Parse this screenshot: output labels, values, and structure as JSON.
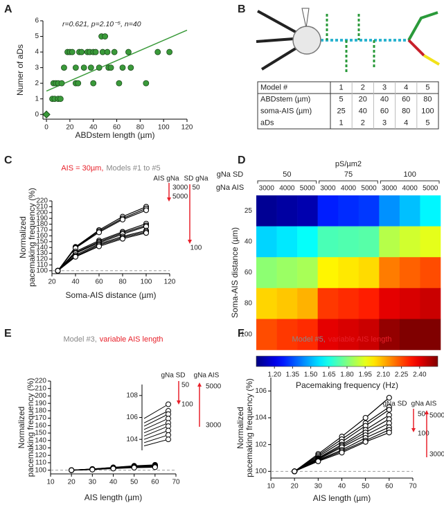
{
  "panel_labels": [
    "A",
    "B",
    "C",
    "D",
    "E",
    "F"
  ],
  "diagram_b": {
    "table": {
      "header": [
        "Model #",
        "1",
        "2",
        "3",
        "4",
        "5"
      ],
      "rows": [
        {
          "label": "ABDstem (µm)",
          "color": "#1aa7d4",
          "cells": [
            "5",
            "20",
            "40",
            "60",
            "80"
          ]
        },
        {
          "label": "soma-AIS (µm)",
          "color": "#e8202a",
          "cells": [
            "25",
            "40",
            "60",
            "80",
            "100"
          ]
        },
        {
          "label": "aDs",
          "color": "#2a9a3a",
          "cells": [
            "1",
            "2",
            "3",
            "4",
            "5"
          ]
        }
      ]
    }
  },
  "chart_data": [
    {
      "type": "scatter",
      "annotation": "r=0.621, p=2.10⁻⁵, n=40",
      "x_label": "ABDstem length (µm)",
      "y_label": "Numer of aDs",
      "xlim": [
        -3,
        120
      ],
      "ylim": [
        -0.3,
        6
      ],
      "xticks": [
        0,
        20,
        40,
        60,
        80,
        100,
        120
      ],
      "yticks": [
        0,
        1,
        2,
        3,
        4,
        5,
        6
      ],
      "color": "#3a9a3a",
      "x": [
        5,
        6,
        7,
        8,
        10,
        10,
        12,
        13,
        15,
        18,
        20,
        22,
        25,
        25,
        27,
        28,
        30,
        32,
        35,
        37,
        38,
        40,
        40,
        42,
        45,
        47,
        48,
        50,
        52,
        53,
        55,
        58,
        62,
        65,
        70,
        72,
        85,
        95,
        105
      ],
      "values": [
        1,
        2,
        1,
        2,
        2,
        1,
        1,
        2,
        3,
        4,
        4,
        4,
        2,
        3,
        2,
        4,
        4,
        3,
        4,
        4,
        3,
        2,
        4,
        4,
        3,
        5,
        4,
        5,
        4,
        3,
        3,
        4,
        2,
        3,
        4,
        3,
        2,
        4,
        4
      ],
      "extra_point": {
        "x": 0,
        "y": 0
      },
      "fit": {
        "x": [
          0,
          120
        ],
        "values": [
          1.5,
          5.4
        ]
      }
    },
    {
      "type": "line",
      "title_parts": [
        {
          "text": "AIS = 30µm,",
          "color": "#e8202a"
        },
        {
          "text": "Models #1 to #5",
          "color": "#888888"
        }
      ],
      "x_label": "Soma-AIS distance (µm)",
      "y_label": [
        "Normalized",
        "pacemaking frequency (%)"
      ],
      "xlim": [
        20,
        120
      ],
      "ylim": [
        95,
        220
      ],
      "xticks": [
        20,
        40,
        60,
        80,
        100,
        120
      ],
      "yticks": [
        100,
        110,
        120,
        130,
        140,
        150,
        160,
        170,
        180,
        190,
        200,
        210,
        220
      ],
      "hline": 100,
      "x": [
        25,
        40,
        60,
        80,
        100
      ],
      "series": [
        {
          "color": "#000000",
          "values": [
            100,
            141,
            170,
            193,
            210
          ]
        },
        {
          "color": "#000000",
          "values": [
            100,
            140,
            168,
            190,
            207
          ]
        },
        {
          "color": "#000000",
          "values": [
            100,
            139,
            166,
            188,
            204
          ]
        },
        {
          "color": "#000000",
          "values": [
            100,
            133,
            152,
            167,
            181
          ]
        },
        {
          "color": "#000000",
          "values": [
            100,
            131,
            150,
            165,
            178
          ]
        },
        {
          "color": "#000000",
          "values": [
            100,
            130,
            148,
            163,
            176
          ]
        },
        {
          "color": "#000000",
          "values": [
            100,
            127,
            146,
            159,
            169
          ]
        },
        {
          "color": "#000000",
          "values": [
            100,
            125,
            144,
            157,
            167
          ]
        },
        {
          "color": "#000000",
          "values": [
            100,
            124,
            142,
            155,
            165
          ]
        }
      ],
      "annotations": [
        "AIS gNa",
        "SD gNa",
        "3000",
        "5000",
        "50",
        "100"
      ]
    },
    {
      "type": "heatmap",
      "top_label": "pS/µm2",
      "group_label": "gNa SD",
      "groups": [
        50,
        75,
        100
      ],
      "column_label": "gNa AIS",
      "columns": [
        3000,
        4000,
        5000,
        3000,
        4000,
        5000,
        3000,
        4000,
        5000
      ],
      "categories": [
        25,
        40,
        60,
        80,
        100
      ],
      "y_label": "Soma-AIS distance (µm)",
      "z": [
        [
          1.08,
          1.1,
          1.12,
          1.28,
          1.3,
          1.32,
          1.45,
          1.52,
          1.6
        ],
        [
          1.55,
          1.58,
          1.62,
          1.72,
          1.73,
          1.74,
          1.88,
          1.92,
          1.95
        ],
        [
          1.82,
          1.84,
          1.86,
          2.0,
          2.02,
          2.04,
          2.18,
          2.22,
          2.25
        ],
        [
          2.05,
          2.07,
          2.1,
          2.28,
          2.3,
          2.32,
          2.4,
          2.42,
          2.44
        ],
        [
          2.25,
          2.28,
          2.3,
          2.4,
          2.42,
          2.44,
          2.52,
          2.55,
          2.58
        ]
      ],
      "colormap": "jet",
      "colorbar": {
        "lim": [
          1.05,
          2.55
        ],
        "label": "Pacemaking frequency (Hz)",
        "ticks": [
          {
            "value": 1.2,
            "label": "1.20"
          },
          {
            "value": 1.35,
            "label": "1.35"
          },
          {
            "value": 1.5,
            "label": "1.50"
          },
          {
            "value": 1.65,
            "label": "1.65"
          },
          {
            "value": 1.8,
            "label": "1.80"
          },
          {
            "value": 1.95,
            "label": "1.95"
          },
          {
            "value": 2.1,
            "label": "2.10"
          },
          {
            "value": 2.25,
            "label": "2.25"
          },
          {
            "value": 2.4,
            "label": "2.40"
          }
        ]
      }
    },
    {
      "type": "line",
      "title_parts": [
        {
          "text": "Model #3,",
          "color": "#888888"
        },
        {
          "text": "variable AIS length",
          "color": "#e8202a"
        }
      ],
      "x_label": "AIS length (µm)",
      "y_label": [
        "Normalized",
        "pacemaking frequency (%)"
      ],
      "xlim": [
        10,
        70
      ],
      "ylim": [
        95,
        220
      ],
      "xticks": [
        10,
        20,
        30,
        40,
        50,
        60,
        70
      ],
      "yticks": [
        100,
        110,
        120,
        130,
        140,
        150,
        160,
        170,
        180,
        190,
        200,
        210,
        220
      ],
      "hline": 100,
      "x": [
        20,
        30,
        40,
        50,
        60
      ],
      "series": [
        {
          "color": "#000000",
          "values": [
            100,
            101.6,
            103.8,
            105.9,
            107.2
          ]
        },
        {
          "color": "#000000",
          "values": [
            100,
            101.5,
            103.6,
            105.5,
            106.6
          ]
        },
        {
          "color": "#000000",
          "values": [
            100,
            101.4,
            103.4,
            105.2,
            106.3
          ]
        },
        {
          "color": "#000000",
          "values": [
            100,
            101.3,
            103.2,
            104.9,
            105.9
          ]
        },
        {
          "color": "#000000",
          "values": [
            100,
            101.2,
            103.0,
            104.6,
            105.5
          ]
        },
        {
          "color": "#000000",
          "values": [
            100,
            101.1,
            102.8,
            104.3,
            105.2
          ]
        },
        {
          "color": "#000000",
          "values": [
            100,
            101.0,
            102.6,
            104.0,
            104.8
          ]
        },
        {
          "color": "#000000",
          "values": [
            100,
            100.9,
            102.4,
            103.7,
            104.4
          ]
        },
        {
          "color": "#000000",
          "values": [
            100,
            100.8,
            102.2,
            103.4,
            104.0
          ]
        }
      ],
      "inset": {
        "xlim": [
          50,
          60
        ],
        "ylim": [
          103,
          109
        ],
        "yticks": [
          104,
          106,
          108
        ]
      },
      "annotations": [
        "gNa SD",
        "gNa AIS",
        "50",
        "100",
        "5000",
        "3000"
      ]
    },
    {
      "type": "line",
      "title_parts": [
        {
          "text": "Model #5,",
          "color": "#888888"
        },
        {
          "text": "variable AIS length",
          "color": "#e8202a"
        }
      ],
      "x_label": "AIS length (µm)",
      "y_label": [
        "Normalized",
        "pacemaking frequency (%)"
      ],
      "xlim": [
        10,
        70
      ],
      "ylim": [
        99.5,
        107
      ],
      "xticks": [
        10,
        20,
        30,
        40,
        50,
        60,
        70
      ],
      "yticks": [
        100,
        102,
        104,
        106
      ],
      "hline": 100,
      "x": [
        20,
        30,
        40,
        50,
        60
      ],
      "series": [
        {
          "color": "#000000",
          "values": [
            100,
            101.3,
            102.6,
            104.0,
            105.5
          ]
        },
        {
          "color": "#000000",
          "values": [
            100,
            101.2,
            102.4,
            103.6,
            104.8
          ]
        },
        {
          "color": "#000000",
          "values": [
            100,
            101.1,
            102.2,
            103.4,
            104.6
          ]
        },
        {
          "color": "#000000",
          "values": [
            100,
            101.0,
            102.0,
            103.1,
            104.2
          ]
        },
        {
          "color": "#000000",
          "values": [
            100,
            100.95,
            101.9,
            102.9,
            103.9
          ]
        },
        {
          "color": "#000000",
          "values": [
            100,
            100.9,
            101.8,
            102.7,
            103.6
          ]
        },
        {
          "color": "#000000",
          "values": [
            100,
            100.85,
            101.6,
            102.5,
            103.3
          ]
        },
        {
          "color": "#000000",
          "values": [
            100,
            100.8,
            101.5,
            102.3,
            103.1
          ]
        },
        {
          "color": "#000000",
          "values": [
            100,
            100.75,
            101.4,
            102.2,
            102.9
          ]
        }
      ],
      "annotations": [
        "gNa SD",
        "gNa AIS",
        "50",
        "100",
        "5000",
        "3000"
      ]
    }
  ]
}
